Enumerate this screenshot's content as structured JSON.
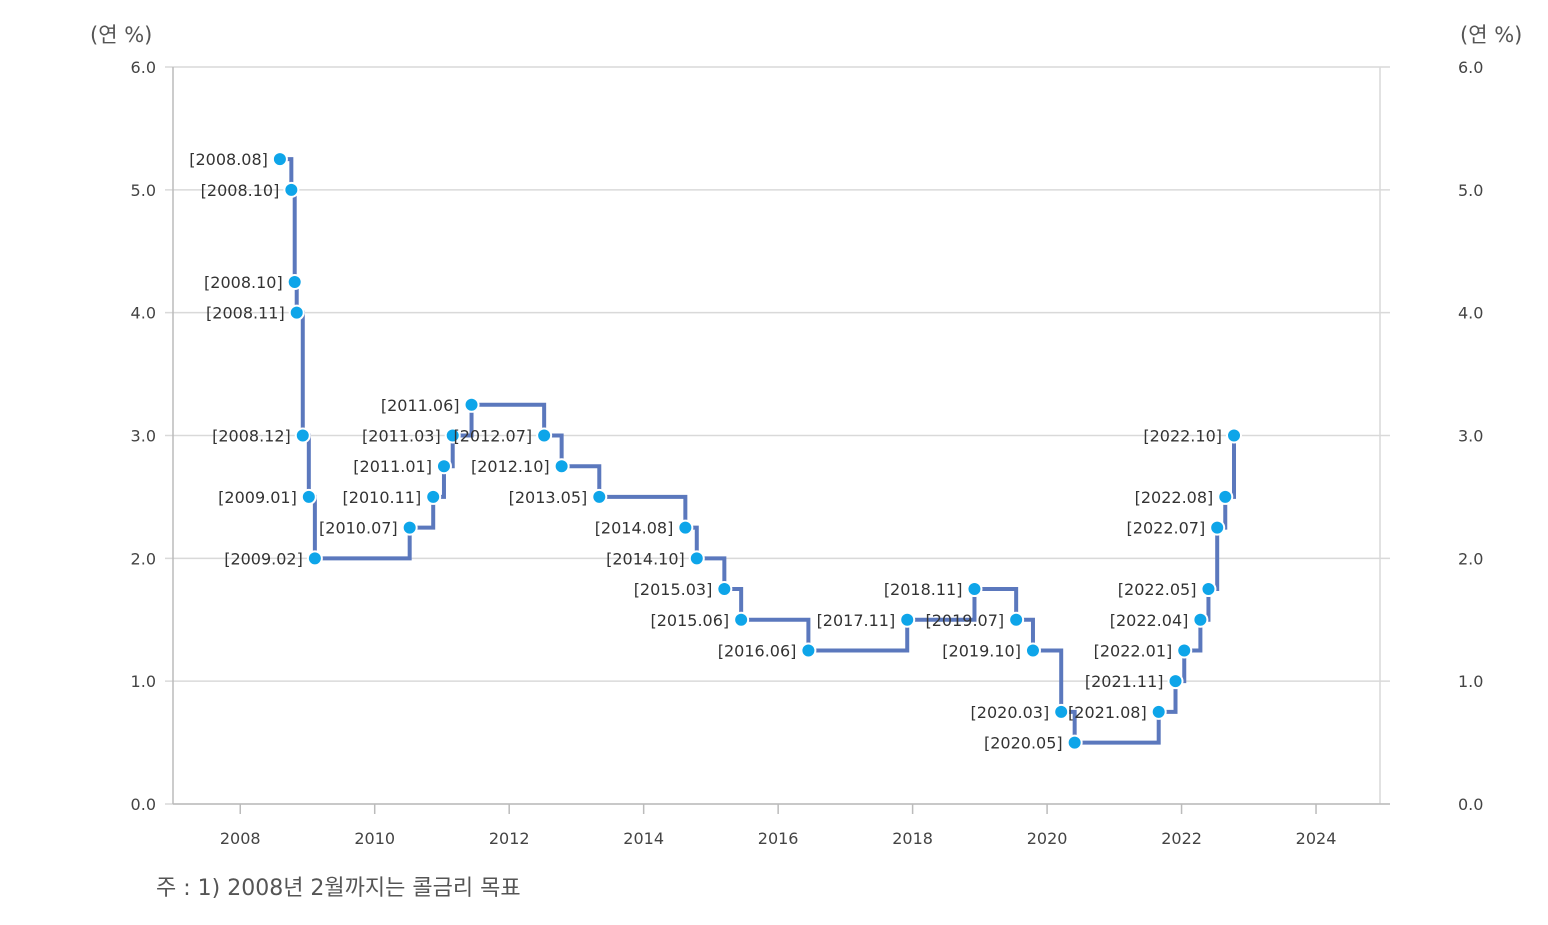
{
  "chart_data": {
    "type": "line",
    "step": true,
    "y_unit_left": "(연 %)",
    "y_unit_right": "(연 %)",
    "ylim": [
      0,
      6
    ],
    "yticks": [
      "0.0",
      "1.0",
      "2.0",
      "3.0",
      "4.0",
      "5.0",
      "6.0"
    ],
    "xlim": [
      2007,
      2025.1
    ],
    "xticks": [
      "2008",
      "2010",
      "2012",
      "2014",
      "2016",
      "2018",
      "2020",
      "2022",
      "2024"
    ],
    "grid": "horizontal",
    "colors": {
      "line": "#5b78bd",
      "marker": "#0ea5e9",
      "grid": "#d9d9d9",
      "axis": "#bbbbbb"
    },
    "points": [
      {
        "label": "[2008.08]",
        "x": 2008.59,
        "y": 5.25,
        "label_side": "left"
      },
      {
        "label": "[2008.10]",
        "x": 2008.76,
        "y": 5.0,
        "label_side": "left"
      },
      {
        "label": "[2008.10]",
        "x": 2008.81,
        "y": 4.25,
        "label_side": "left"
      },
      {
        "label": "[2008.11]",
        "x": 2008.84,
        "y": 4.0,
        "label_side": "left"
      },
      {
        "label": "[2008.12]",
        "x": 2008.93,
        "y": 3.0,
        "label_side": "left"
      },
      {
        "label": "[2009.01]",
        "x": 2009.02,
        "y": 2.5,
        "label_side": "left"
      },
      {
        "label": "[2009.02]",
        "x": 2009.11,
        "y": 2.0,
        "label_side": "left"
      },
      {
        "label": "[2010.07]",
        "x": 2010.52,
        "y": 2.25,
        "label_side": "left"
      },
      {
        "label": "[2010.11]",
        "x": 2010.87,
        "y": 2.5,
        "label_side": "left"
      },
      {
        "label": "[2011.01]",
        "x": 2011.03,
        "y": 2.75,
        "label_side": "left"
      },
      {
        "label": "[2011.03]",
        "x": 2011.16,
        "y": 3.0,
        "label_side": "left"
      },
      {
        "label": "[2011.06]",
        "x": 2011.44,
        "y": 3.25,
        "label_side": "left"
      },
      {
        "label": "[2012.07]",
        "x": 2012.52,
        "y": 3.0,
        "label_side": "left"
      },
      {
        "label": "[2012.10]",
        "x": 2012.78,
        "y": 2.75,
        "label_side": "left"
      },
      {
        "label": "[2013.05]",
        "x": 2013.34,
        "y": 2.5,
        "label_side": "left"
      },
      {
        "label": "[2014.08]",
        "x": 2014.62,
        "y": 2.25,
        "label_side": "left"
      },
      {
        "label": "[2014.10]",
        "x": 2014.79,
        "y": 2.0,
        "label_side": "left"
      },
      {
        "label": "[2015.03]",
        "x": 2015.2,
        "y": 1.75,
        "label_side": "left"
      },
      {
        "label": "[2015.06]",
        "x": 2015.45,
        "y": 1.5,
        "label_side": "left"
      },
      {
        "label": "[2016.06]",
        "x": 2016.45,
        "y": 1.25,
        "label_side": "left"
      },
      {
        "label": "[2017.11]",
        "x": 2017.92,
        "y": 1.5,
        "label_side": "left"
      },
      {
        "label": "[2018.11]",
        "x": 2018.92,
        "y": 1.75,
        "label_side": "left"
      },
      {
        "label": "[2019.07]",
        "x": 2019.54,
        "y": 1.5,
        "label_side": "left"
      },
      {
        "label": "[2019.10]",
        "x": 2019.79,
        "y": 1.25,
        "label_side": "left"
      },
      {
        "label": "[2020.03]",
        "x": 2020.21,
        "y": 0.75,
        "label_side": "left"
      },
      {
        "label": "[2020.05]",
        "x": 2020.41,
        "y": 0.5,
        "label_side": "left"
      },
      {
        "label": "[2021.08]",
        "x": 2021.66,
        "y": 0.75,
        "label_side": "left"
      },
      {
        "label": "[2021.11]",
        "x": 2021.91,
        "y": 1.0,
        "label_side": "left"
      },
      {
        "label": "[2022.01]",
        "x": 2022.04,
        "y": 1.25,
        "label_side": "left"
      },
      {
        "label": "[2022.04]",
        "x": 2022.28,
        "y": 1.5,
        "label_side": "left"
      },
      {
        "label": "[2022.05]",
        "x": 2022.4,
        "y": 1.75,
        "label_side": "left"
      },
      {
        "label": "[2022.07]",
        "x": 2022.53,
        "y": 2.25,
        "label_side": "left"
      },
      {
        "label": "[2022.08]",
        "x": 2022.65,
        "y": 2.5,
        "label_side": "left"
      },
      {
        "label": "[2022.10]",
        "x": 2022.78,
        "y": 3.0,
        "label_side": "left"
      }
    ]
  },
  "note": "주 : 1) 2008년 2월까지는 콜금리 목표"
}
